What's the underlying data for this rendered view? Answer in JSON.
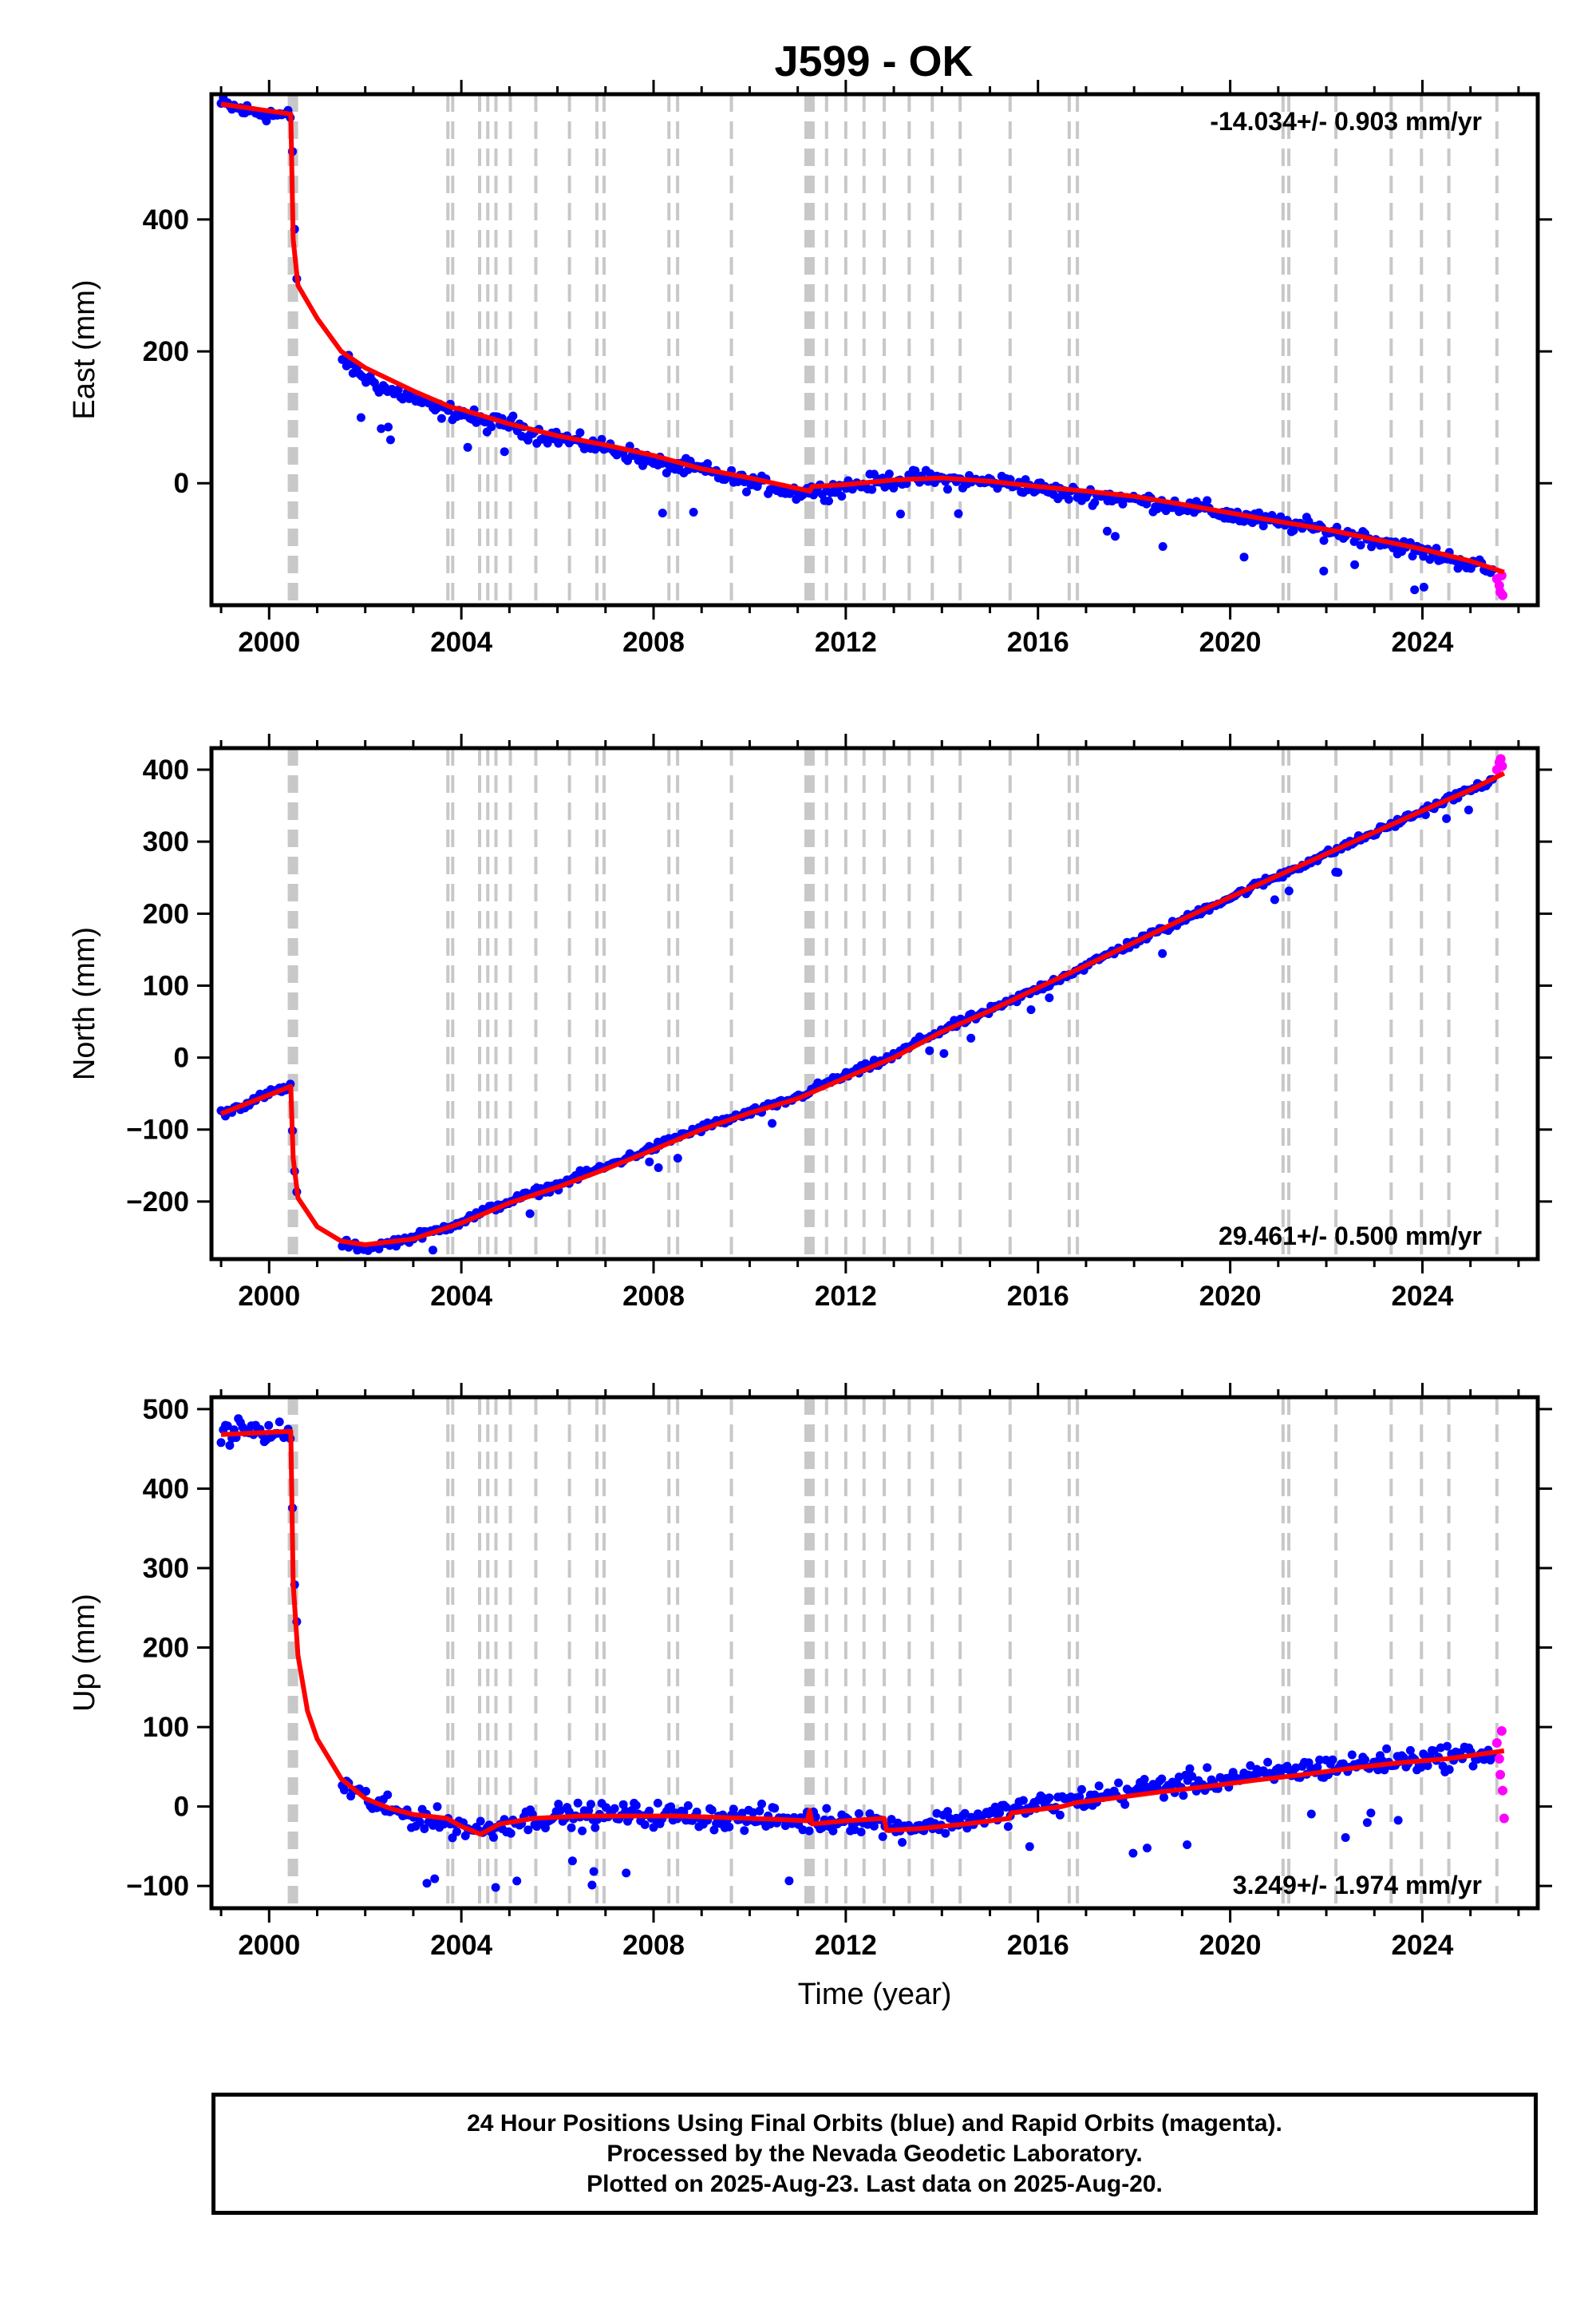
{
  "title": "J599 - OK",
  "colors": {
    "final_orbits": "#0000ff",
    "rapid_orbits": "#ff00ff",
    "model": "#ff0000",
    "events": "#c8c8c8",
    "axes": "#000000"
  },
  "events": {
    "equipment_years": [
      2000.42,
      2000.47,
      2000.52,
      2000.57,
      2003.72,
      2003.82,
      2004.38,
      2004.55,
      2004.72,
      2005.02,
      2005.55,
      2006.25,
      2006.82,
      2006.97,
      2008.32,
      2008.5,
      2009.62,
      2011.17,
      2011.22,
      2011.27,
      2011.32,
      2011.6,
      2012.0,
      2012.38,
      2012.8,
      2013.32,
      2013.8,
      2014.38,
      2015.42,
      2016.65,
      2016.82,
      2021.1,
      2021.22,
      2022.2,
      2023.35,
      2023.98,
      2024.55,
      2025.55
    ]
  },
  "chart_data": [
    {
      "type": "scatter",
      "title": "J599 - OK",
      "ylabel": "East (mm)",
      "xlabel": "",
      "xlim": [
        1998.8,
        2026.4
      ],
      "ylim": [
        -185,
        590
      ],
      "x_ticks": [
        "2000",
        "2004",
        "2008",
        "2012",
        "2016",
        "2020",
        "2024"
      ],
      "y_ticks": [
        "0",
        "200",
        "400"
      ],
      "rate_label": "-14.034+/- 0.903 mm/yr",
      "rate_position": "top-right",
      "series": [
        {
          "kind": "final_orbits",
          "x": [
            1999.0,
            1999.5,
            2000.0,
            2000.3,
            2000.45,
            2000.5,
            2000.52,
            2000.55,
            2000.6,
            2001.0,
            2001.5,
            2002.0,
            2002.5,
            2003.0,
            2003.5,
            2004.0,
            2004.5,
            2005.0,
            2005.5,
            2006.0,
            2006.5,
            2007.0,
            2007.5,
            2008.0,
            2008.5,
            2009.0,
            2009.5,
            2010.0,
            2010.5,
            2011.0,
            2011.2,
            2011.5,
            2012.0,
            2012.5,
            2013.0,
            2013.5,
            2014.0,
            2014.5,
            2015.0,
            2015.5,
            2016.0,
            2016.5,
            2017.0,
            2017.5,
            2018.0,
            2018.5,
            2019.0,
            2019.5,
            2020.0,
            2020.5,
            2021.0,
            2021.5,
            2022.0,
            2022.5,
            2023.0,
            2023.5,
            2024.0,
            2024.5,
            2025.0,
            2025.5
          ],
          "y": [
            575,
            565,
            560,
            558,
            555,
            470,
            420,
            330,
            290,
            null,
            190,
            160,
            140,
            130,
            110,
            108,
            90,
            92,
            75,
            70,
            60,
            55,
            45,
            30,
            25,
            20,
            10,
            0,
            -5,
            -15,
            -10,
            -12,
            -5,
            0,
            5,
            8,
            5,
            3,
            2,
            0,
            -8,
            -15,
            -18,
            -20,
            -25,
            -30,
            -35,
            -40,
            -48,
            -55,
            -60,
            -65,
            -72,
            -78,
            -85,
            -95,
            -105,
            -112,
            -122,
            -135
          ],
          "spread": 18
        },
        {
          "kind": "rapid_orbits",
          "x": [
            2025.55,
            2025.6,
            2025.62,
            2025.65,
            2025.67
          ],
          "y": [
            -145,
            -155,
            -165,
            -140,
            -170
          ],
          "spread": 10
        },
        {
          "kind": "model",
          "x": [
            1999.0,
            2000.45,
            2000.5,
            2000.6,
            2001.0,
            2001.5,
            2002.0,
            2003.0,
            2003.8,
            2004.0,
            2005.0,
            2006.0,
            2007.0,
            2008.0,
            2009.0,
            2010.0,
            2011.0,
            2011.25,
            2011.3,
            2012.0,
            2013.0,
            2014.0,
            2015.0,
            2016.0,
            2017.0,
            2018.0,
            2019.0,
            2020.0,
            2021.0,
            2022.0,
            2023.0,
            2024.0,
            2025.0,
            2025.7
          ],
          "y": [
            575,
            560,
            370,
            300,
            250,
            200,
            175,
            140,
            115,
            112,
            90,
            72,
            58,
            42,
            22,
            8,
            -8,
            -12,
            -5,
            -2,
            5,
            8,
            3,
            -5,
            -12,
            -20,
            -32,
            -45,
            -58,
            -70,
            -85,
            -100,
            -118,
            -135
          ]
        }
      ]
    },
    {
      "type": "scatter",
      "title": "",
      "ylabel": "North (mm)",
      "xlabel": "",
      "xlim": [
        1998.8,
        2026.4
      ],
      "ylim": [
        -280,
        430
      ],
      "x_ticks": [
        "2000",
        "2004",
        "2008",
        "2012",
        "2016",
        "2020",
        "2024"
      ],
      "y_ticks": [
        "−200",
        "−100",
        "0",
        "100",
        "200",
        "300",
        "400"
      ],
      "rate_label": "29.461+/- 0.500 mm/yr",
      "rate_position": "bottom-right",
      "series": [
        {
          "kind": "final_orbits",
          "x": [
            1999.0,
            1999.5,
            2000.0,
            2000.45,
            2000.5,
            2000.55,
            2000.6,
            2001.0,
            2001.5,
            2002.0,
            2002.5,
            2003.0,
            2003.5,
            2004.0,
            2004.5,
            2005.0,
            2005.5,
            2006.0,
            2006.5,
            2007.0,
            2007.5,
            2008.0,
            2008.5,
            2009.0,
            2009.5,
            2010.0,
            2010.5,
            2011.0,
            2011.5,
            2012.0,
            2012.5,
            2013.0,
            2013.5,
            2014.0,
            2014.5,
            2015.0,
            2015.5,
            2016.0,
            2016.5,
            2017.0,
            2017.5,
            2018.0,
            2018.5,
            2019.0,
            2019.5,
            2020.0,
            2020.5,
            2021.0,
            2021.5,
            2022.0,
            2022.5,
            2023.0,
            2023.5,
            2024.0,
            2024.5,
            2025.0,
            2025.5
          ],
          "y": [
            -78,
            -65,
            -50,
            -40,
            -130,
            -175,
            -205,
            null,
            -258,
            -265,
            -258,
            -250,
            -240,
            -228,
            -213,
            -200,
            -188,
            -178,
            -163,
            -152,
            -138,
            -125,
            -110,
            -98,
            -87,
            -77,
            -67,
            -55,
            -38,
            -25,
            -12,
            2,
            22,
            38,
            52,
            65,
            80,
            96,
            112,
            127,
            145,
            160,
            175,
            190,
            208,
            222,
            238,
            252,
            268,
            282,
            298,
            312,
            328,
            342,
            358,
            372,
            388
          ],
          "spread": 8
        },
        {
          "kind": "rapid_orbits",
          "x": [
            2025.55,
            2025.6,
            2025.63,
            2025.66
          ],
          "y": [
            400,
            410,
            415,
            405
          ],
          "spread": 6
        },
        {
          "kind": "model",
          "x": [
            1999.0,
            2000.45,
            2000.5,
            2000.6,
            2001.0,
            2001.5,
            2002.0,
            2003.0,
            2004.0,
            2005.0,
            2006.0,
            2007.0,
            2008.0,
            2009.0,
            2010.0,
            2011.0,
            2012.0,
            2013.0,
            2014.0,
            2015.0,
            2016.0,
            2017.0,
            2018.0,
            2019.0,
            2020.0,
            2021.0,
            2022.0,
            2023.0,
            2024.0,
            2025.0,
            2025.7
          ],
          "y": [
            -78,
            -40,
            -140,
            -195,
            -235,
            -255,
            -260,
            -252,
            -230,
            -202,
            -180,
            -155,
            -128,
            -100,
            -77,
            -57,
            -28,
            0,
            36,
            65,
            97,
            128,
            160,
            192,
            223,
            253,
            283,
            313,
            343,
            372,
            395
          ]
        }
      ]
    },
    {
      "type": "scatter",
      "title": "",
      "ylabel": "Up (mm)",
      "xlabel": "Time (year)",
      "xlim": [
        1998.8,
        2026.4
      ],
      "ylim": [
        -128,
        515
      ],
      "x_ticks": [
        "2000",
        "2004",
        "2008",
        "2012",
        "2016",
        "2020",
        "2024"
      ],
      "y_ticks": [
        "−100",
        "0",
        "100",
        "200",
        "300",
        "400",
        "500"
      ],
      "rate_label": "3.249+/- 1.974 mm/yr",
      "rate_position": "bottom-right",
      "series": [
        {
          "kind": "final_orbits",
          "x": [
            1999.0,
            1999.5,
            2000.0,
            2000.45,
            2000.5,
            2000.55,
            2000.6,
            2001.0,
            2001.5,
            2002.0,
            2002.5,
            2003.0,
            2003.5,
            2004.0,
            2004.5,
            2005.0,
            2005.5,
            2006.0,
            2006.5,
            2007.0,
            2007.5,
            2008.0,
            2008.5,
            2009.0,
            2009.5,
            2010.0,
            2010.5,
            2011.0,
            2011.5,
            2012.0,
            2012.5,
            2013.0,
            2013.5,
            2014.0,
            2014.5,
            2015.0,
            2015.5,
            2016.0,
            2016.5,
            2017.0,
            2017.5,
            2018.0,
            2018.5,
            2019.0,
            2019.5,
            2020.0,
            2020.5,
            2021.0,
            2021.5,
            2022.0,
            2022.5,
            2023.0,
            2023.5,
            2024.0,
            2024.5,
            2025.0,
            2025.5
          ],
          "y": [
            470,
            475,
            468,
            470,
            330,
            250,
            200,
            null,
            30,
            10,
            -5,
            -12,
            -18,
            -25,
            -30,
            -20,
            -15,
            -12,
            -12,
            -10,
            -10,
            -10,
            -12,
            -12,
            -15,
            -15,
            -15,
            -18,
            -18,
            -16,
            -18,
            -28,
            -24,
            -20,
            -16,
            -12,
            -5,
            2,
            5,
            10,
            15,
            20,
            25,
            28,
            32,
            35,
            38,
            42,
            46,
            50,
            52,
            55,
            58,
            60,
            62,
            65,
            68
          ],
          "spread": 22
        },
        {
          "kind": "rapid_orbits",
          "x": [
            2025.55,
            2025.6,
            2025.62,
            2025.65,
            2025.67,
            2025.7
          ],
          "y": [
            80,
            60,
            40,
            95,
            20,
            -15
          ],
          "spread": 10
        },
        {
          "kind": "model",
          "x": [
            1999.0,
            2000.45,
            2000.5,
            2000.6,
            2000.8,
            2001.0,
            2001.5,
            2002.0,
            2002.5,
            2003.0,
            2003.7,
            2004.0,
            2004.4,
            2004.8,
            2005.5,
            2006.5,
            2007.5,
            2008.5,
            2009.5,
            2010.5,
            2011.2,
            2011.25,
            2011.3,
            2012.0,
            2012.8,
            2012.85,
            2013.5,
            2014.5,
            2015.4,
            2015.45,
            2016.5,
            2016.8,
            2017.5,
            2018.5,
            2019.5,
            2020.5,
            2021.5,
            2022.5,
            2023.5,
            2024.5,
            2025.0,
            2025.7
          ],
          "y": [
            468,
            472,
            280,
            190,
            120,
            85,
            35,
            10,
            -2,
            -10,
            -15,
            -25,
            -35,
            -22,
            -15,
            -12,
            -12,
            -12,
            -14,
            -16,
            -18,
            -5,
            -22,
            -18,
            -15,
            -30,
            -28,
            -22,
            -15,
            -8,
            0,
            5,
            10,
            18,
            25,
            33,
            40,
            48,
            55,
            60,
            64,
            70
          ]
        }
      ]
    }
  ],
  "footer": {
    "line1": "24 Hour Positions Using Final Orbits (blue) and Rapid Orbits (magenta).",
    "line2": "Processed by the Nevada Geodetic Laboratory.",
    "line3": "Plotted on 2025-Aug-23. Last data on 2025-Aug-20."
  }
}
